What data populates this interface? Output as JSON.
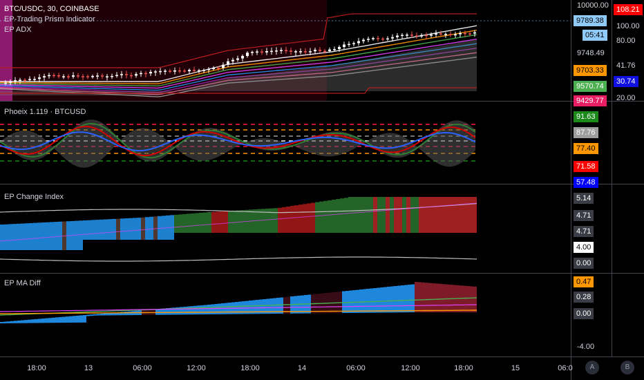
{
  "main": {
    "symbol_line": "BTC/USDC, 30, COINBASE",
    "indicator1": "EP-Trading Prism Indicator",
    "indicator2": "EP ADX",
    "price_axis": {
      "top": "10000.00",
      "current_price": "9789.38",
      "countdown": "05:41",
      "p2": "9748.49",
      "p3": "9703.33",
      "p4": "9570.74",
      "p5": "9429.77"
    },
    "adx_axis": {
      "top": "108.21",
      "t1": "100.00",
      "t2": "80.00",
      "t3": "41.76",
      "t4": "30.74",
      "t5": "20.00"
    }
  },
  "phoeix": {
    "title": "Phoeix 1.119 · BTCUSD",
    "labels": [
      "91.63",
      "87.76",
      "77.40",
      "71.58",
      "57.48"
    ]
  },
  "change_index": {
    "title": "EP Change Index",
    "labels": [
      "5.14",
      "4.71",
      "4.71",
      "4.00",
      "0.00"
    ]
  },
  "ma_diff": {
    "title": "EP MA Diff",
    "labels": [
      "0.47",
      "0.28",
      "0.00",
      "-4.00"
    ]
  },
  "time_axis": [
    "18:00",
    "13",
    "06:00",
    "12:00",
    "18:00",
    "14",
    "06:00",
    "12:00",
    "18:00",
    "15",
    "06:0"
  ],
  "buttons": {
    "a": "A",
    "b": "B"
  },
  "colors": {
    "up": "#ffffff",
    "down": "#ef5350",
    "green": "#4caf50",
    "blue": "#2196f3",
    "orange": "#ff9800",
    "red": "#ff0000",
    "magenta": "#e040fb",
    "purple_label": "#1565c0"
  }
}
